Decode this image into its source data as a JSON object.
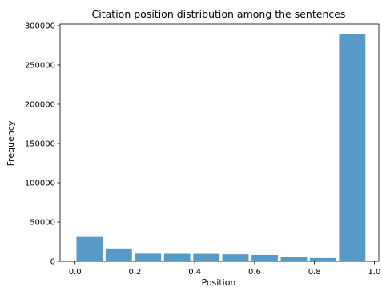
{
  "chart_data": {
    "type": "bar",
    "title": "Citation position distribution among the sentences",
    "xlabel": "Position",
    "ylabel": "Frequency",
    "xlim": [
      -0.05,
      1.015
    ],
    "ylim": [
      0,
      302000
    ],
    "xticks": [
      0.0,
      0.2,
      0.4,
      0.6,
      0.8,
      1.0
    ],
    "xtick_labels": [
      "0.0",
      "0.2",
      "0.4",
      "0.6",
      "0.8",
      "1.0"
    ],
    "yticks": [
      0,
      50000,
      100000,
      150000,
      200000,
      250000,
      300000
    ],
    "ytick_labels": [
      "0",
      "50000",
      "100000",
      "150000",
      "200000",
      "250000",
      "300000"
    ],
    "bin_edges": [
      0.0,
      0.0975,
      0.195,
      0.2925,
      0.39,
      0.4875,
      0.585,
      0.6825,
      0.78,
      0.8775,
      0.975
    ],
    "bar_width_fraction": 0.9,
    "values": [
      31000,
      16500,
      9800,
      9700,
      9600,
      9000,
      8200,
      5700,
      4200,
      289000
    ],
    "color": "#5799c7",
    "grid": false,
    "legend": "none"
  }
}
